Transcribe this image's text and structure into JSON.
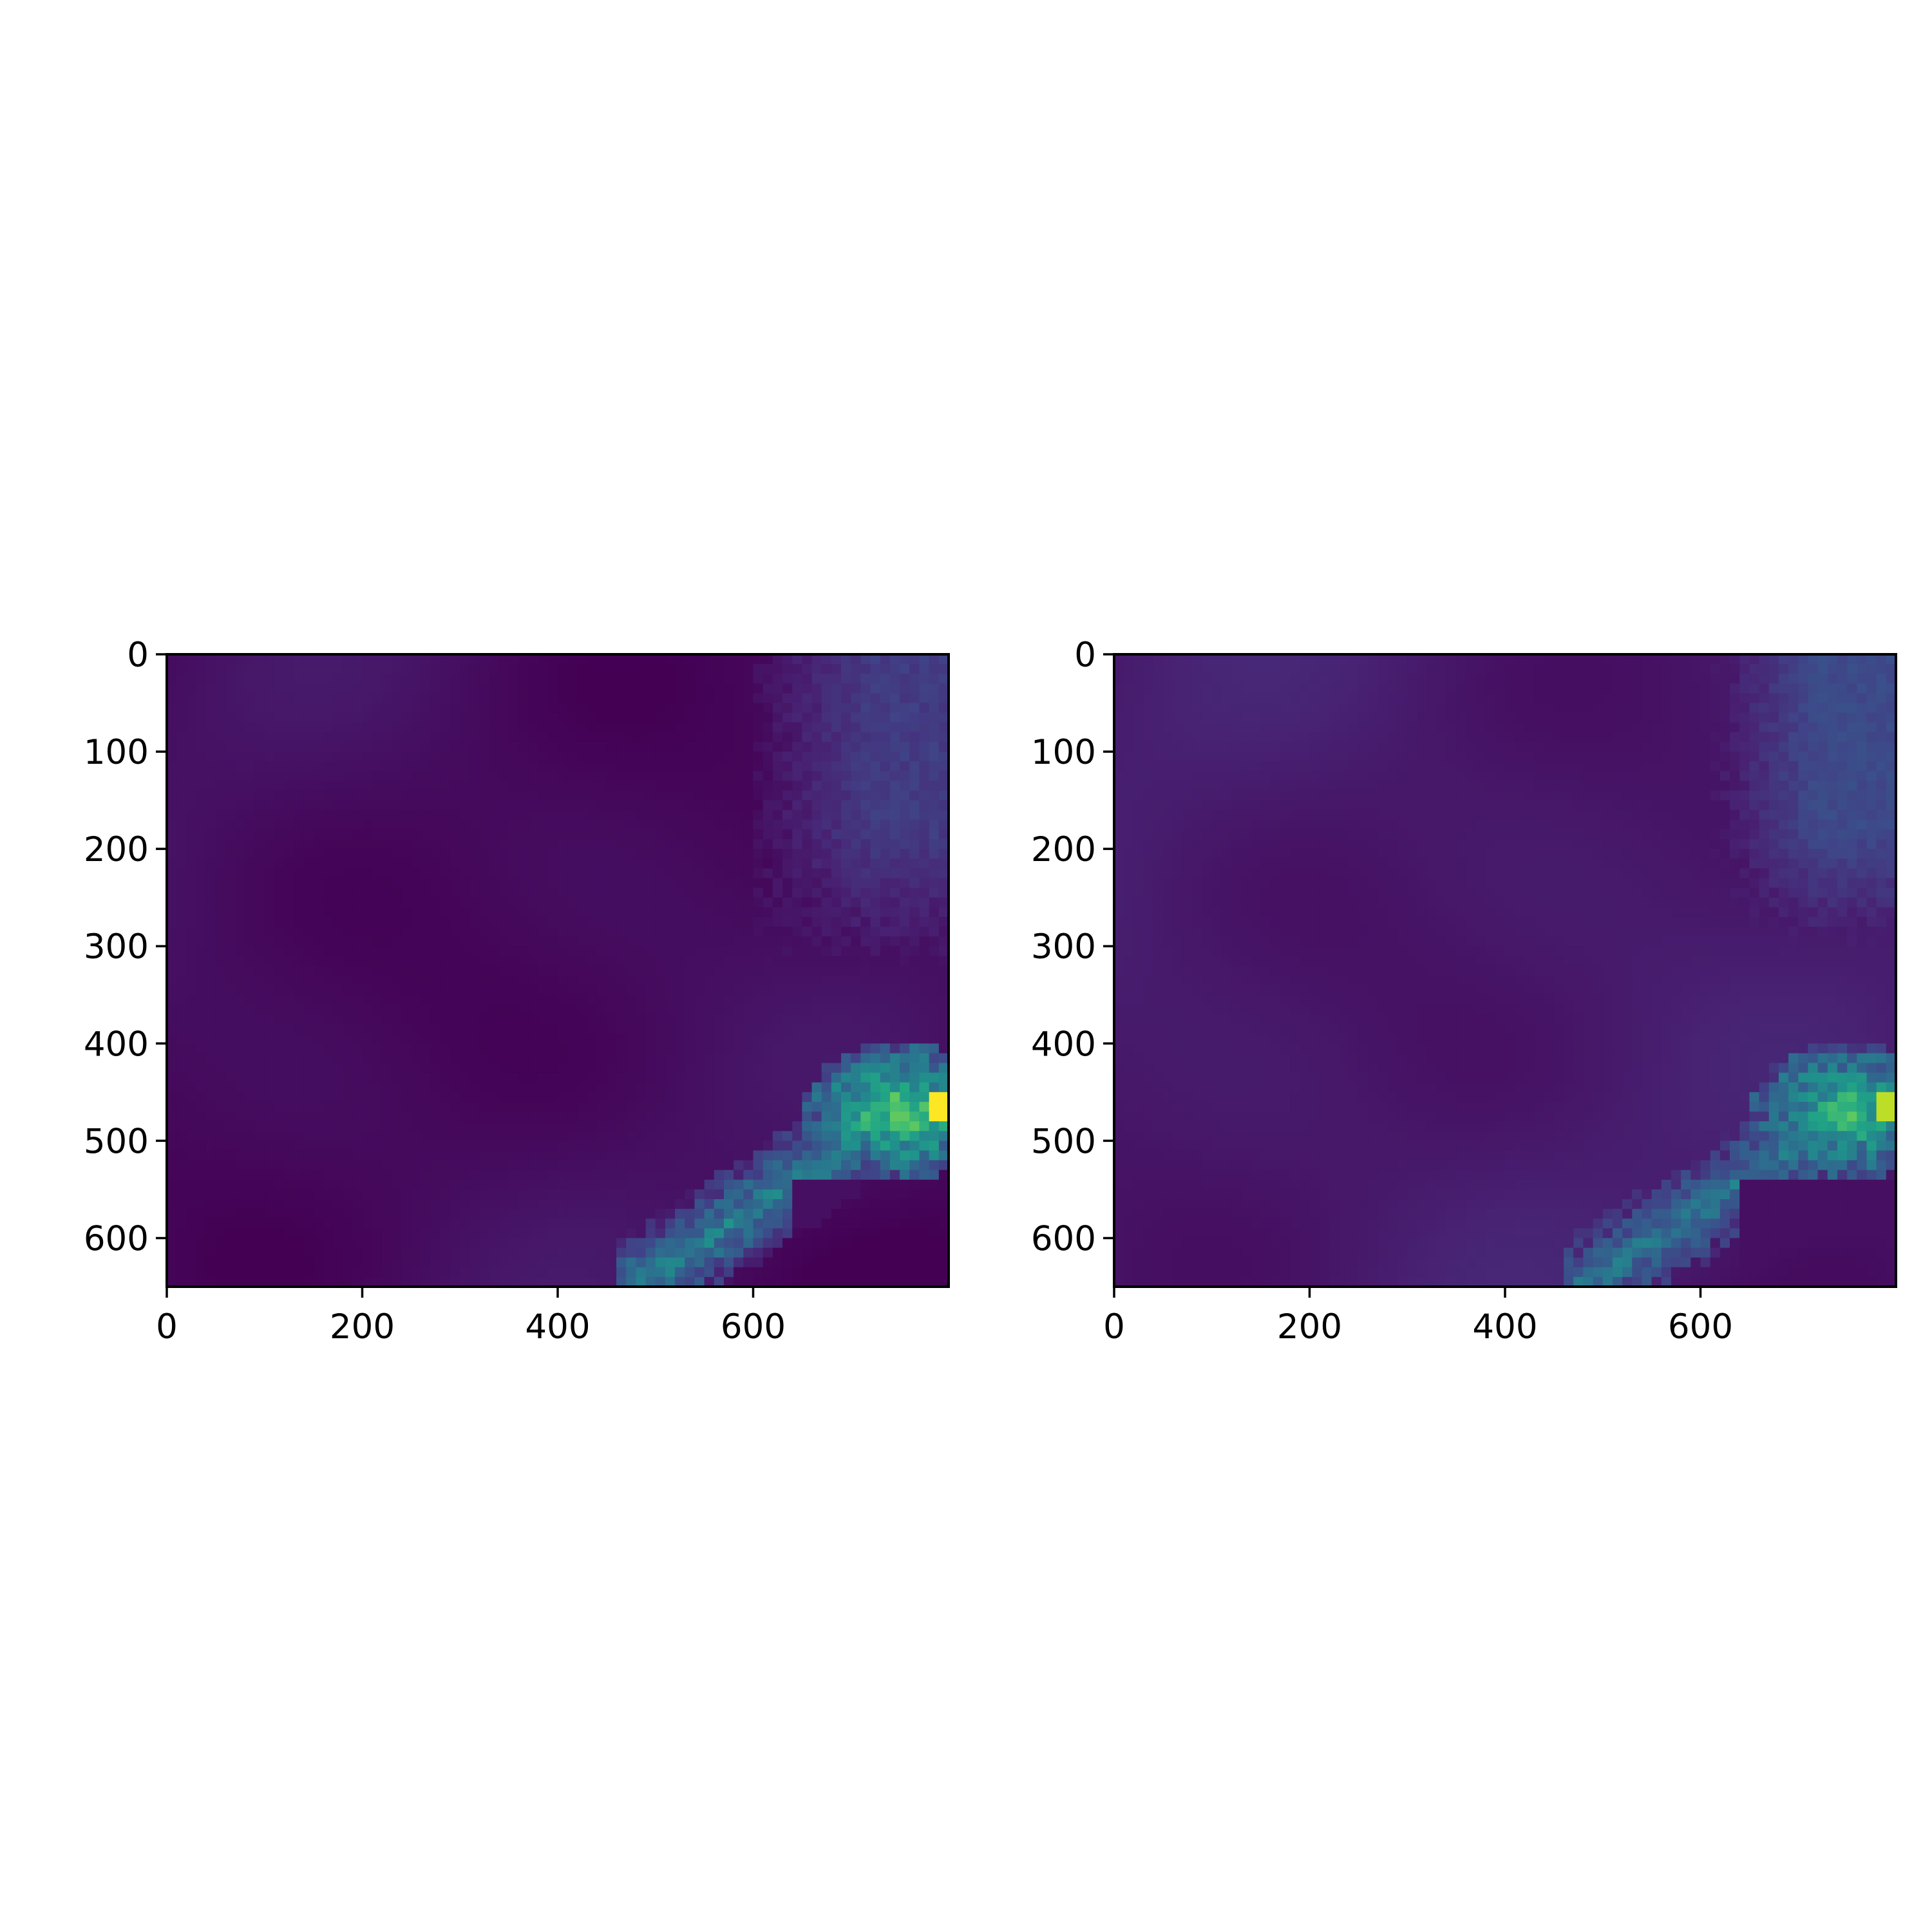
{
  "chart_data": [
    {
      "type": "heatmap",
      "title": "",
      "xlabel": "",
      "ylabel": "",
      "colormap": "viridis",
      "x_range": [
        0,
        800
      ],
      "y_range": [
        650,
        0
      ],
      "x_ticks": [
        "0",
        "200",
        "400",
        "600"
      ],
      "y_ticks": [
        "0",
        "100",
        "200",
        "300",
        "400",
        "500",
        "600"
      ],
      "background_level": 0.03,
      "features": [
        {
          "region": "upper-right haze",
          "x": [
            620,
            800
          ],
          "y": [
            0,
            320
          ],
          "level": 0.15
        },
        {
          "region": "right-edge bright cluster",
          "x": [
            680,
            800
          ],
          "y": [
            410,
            520
          ],
          "level": 0.55,
          "peak": 1.0
        },
        {
          "region": "lower diagonal band",
          "x": [
            480,
            690
          ],
          "y": [
            520,
            650
          ],
          "level": 0.35
        }
      ]
    },
    {
      "type": "heatmap",
      "title": "",
      "xlabel": "",
      "ylabel": "",
      "colormap": "viridis",
      "x_range": [
        0,
        800
      ],
      "y_range": [
        650,
        0
      ],
      "x_ticks": [
        "0",
        "200",
        "400",
        "600"
      ],
      "y_ticks": [
        "0",
        "100",
        "200",
        "300",
        "400",
        "500",
        "600"
      ],
      "background_level": 0.07,
      "features": [
        {
          "region": "upper-right haze",
          "x": [
            620,
            800
          ],
          "y": [
            0,
            320
          ],
          "level": 0.2
        },
        {
          "region": "right-edge bright cluster",
          "x": [
            680,
            800
          ],
          "y": [
            410,
            520
          ],
          "level": 0.45,
          "peak": 0.9
        },
        {
          "region": "lower diagonal band",
          "x": [
            480,
            690
          ],
          "y": [
            520,
            650
          ],
          "level": 0.3
        }
      ]
    }
  ]
}
